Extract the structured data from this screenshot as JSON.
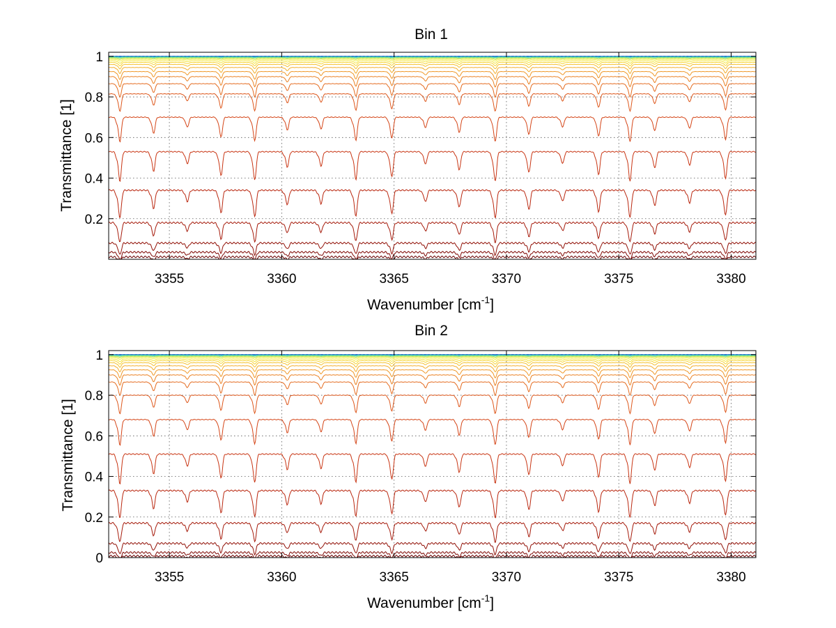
{
  "chart_data": [
    {
      "type": "line",
      "title": "Bin 1",
      "xlabel": "Wavenumber [cm",
      "xlabel_sup": "-1",
      "xlabel_end": "]",
      "ylabel": "Transmittance [1]",
      "xlim": [
        3352.3,
        3381.1
      ],
      "ylim": [
        0,
        1.02
      ],
      "xticks": [
        3355,
        3360,
        3365,
        3370,
        3375,
        3380
      ],
      "xtick_labels": [
        "3355",
        "3360",
        "3365",
        "3370",
        "3375",
        "3380"
      ],
      "yticks": [
        0.2,
        0.4,
        0.6,
        0.8,
        1
      ],
      "ytick_labels": [
        "0.2",
        "0.4",
        "0.6",
        "0.8",
        "1"
      ],
      "grid": "dotted",
      "absorption_lines_cm1": [
        3352.8,
        3354.3,
        3355.8,
        3357.3,
        3358.8,
        3360.25,
        3361.75,
        3363.3,
        3364.9,
        3366.4,
        3367.9,
        3369.5,
        3371.0,
        3372.5,
        3374.1,
        3375.5,
        3376.6,
        3378.15,
        3379.75
      ],
      "series_baseline_transmittance": [
        1.0,
        1.0,
        0.999,
        0.998,
        0.996,
        0.993,
        0.99,
        0.985,
        0.978,
        0.97,
        0.96,
        0.945,
        0.925,
        0.9,
        0.865,
        0.815,
        0.7,
        0.53,
        0.34,
        0.18,
        0.08,
        0.035,
        0.012
      ],
      "series_colors": [
        "#00007f",
        "#0a3cc8",
        "#1e90d4",
        "#1fb5c9",
        "#58d6a6",
        "#9ee377",
        "#d8ea4a",
        "#f0f04a",
        "#f5e53e",
        "#f7d536",
        "#f5c230",
        "#f3ad2a",
        "#ef9726",
        "#ea8022",
        "#e46a1e",
        "#dd561a",
        "#d44416",
        "#c83412",
        "#b9260e",
        "#a51a0a",
        "#911006",
        "#7f0804",
        "#6a0202"
      ]
    },
    {
      "type": "line",
      "title": "Bin 2",
      "xlabel": "Wavenumber [cm",
      "xlabel_sup": "-1",
      "xlabel_end": "]",
      "ylabel": "Transmittance [1]",
      "xlim": [
        3352.3,
        3381.1
      ],
      "ylim": [
        0,
        1.02
      ],
      "xticks": [
        3355,
        3360,
        3365,
        3370,
        3375,
        3380
      ],
      "xtick_labels": [
        "3355",
        "3360",
        "3365",
        "3370",
        "3375",
        "3380"
      ],
      "yticks": [
        0,
        0.2,
        0.4,
        0.6,
        0.8,
        1
      ],
      "ytick_labels": [
        "0",
        "0.2",
        "0.4",
        "0.6",
        "0.8",
        "1"
      ],
      "grid": "dotted",
      "absorption_lines_cm1": [
        3352.8,
        3354.3,
        3355.8,
        3357.3,
        3358.8,
        3360.25,
        3361.75,
        3363.3,
        3364.9,
        3366.4,
        3367.9,
        3369.5,
        3371.0,
        3372.5,
        3374.1,
        3375.5,
        3376.6,
        3378.15,
        3379.75
      ],
      "series_baseline_transmittance": [
        1.0,
        1.0,
        0.999,
        0.998,
        0.996,
        0.993,
        0.99,
        0.985,
        0.978,
        0.97,
        0.96,
        0.945,
        0.925,
        0.9,
        0.865,
        0.8,
        0.68,
        0.51,
        0.33,
        0.17,
        0.07,
        0.025,
        0.008
      ],
      "series_colors": [
        "#00007f",
        "#0a3cc8",
        "#1e90d4",
        "#1fb5c9",
        "#58d6a6",
        "#9ee377",
        "#d8ea4a",
        "#f0f04a",
        "#f5e53e",
        "#f7d536",
        "#f5c230",
        "#f3ad2a",
        "#ef9726",
        "#ea8022",
        "#e46a1e",
        "#dd561a",
        "#d44416",
        "#c83412",
        "#b9260e",
        "#a51a0a",
        "#911006",
        "#7f0804",
        "#6a0202"
      ]
    }
  ]
}
